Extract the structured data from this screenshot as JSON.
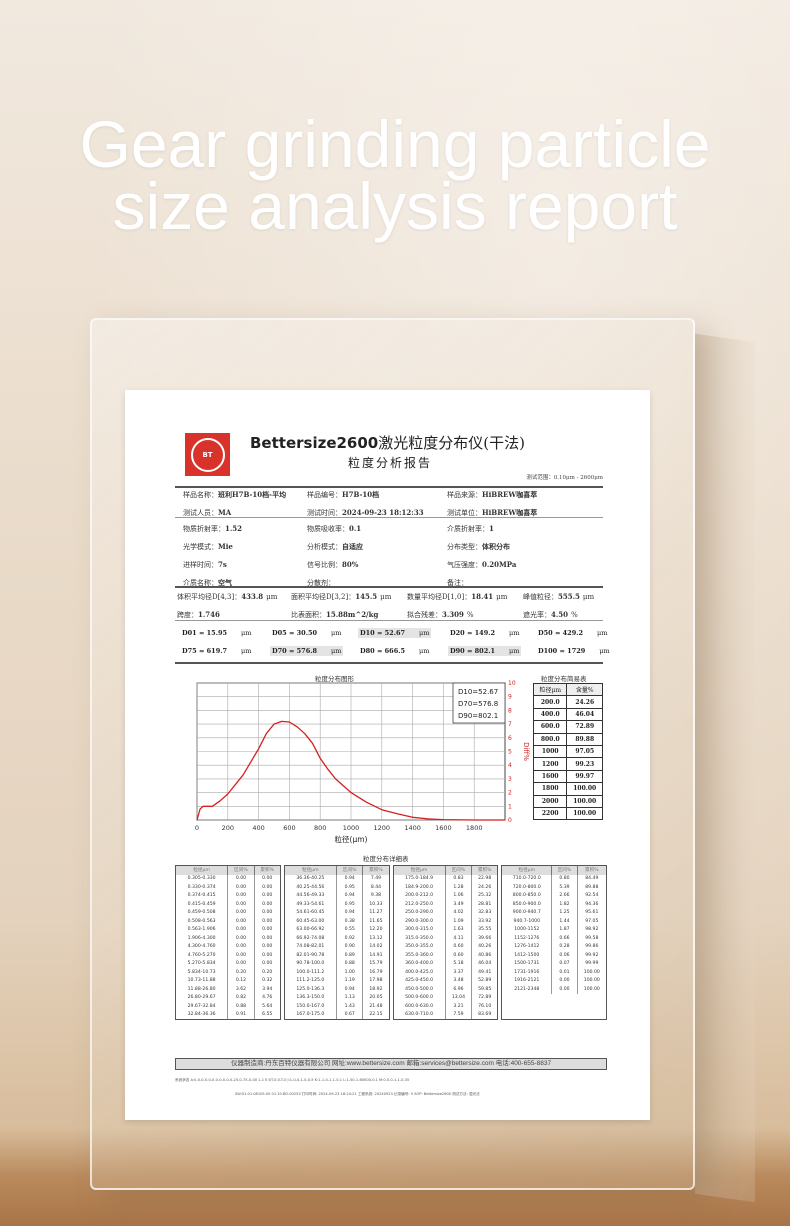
{
  "headline": {
    "line1": "Gear grinding particle",
    "line2": "size analysis report"
  },
  "report": {
    "logo_text": "BETTER 百特 BT",
    "logo_center": "BT",
    "title_brand": "Bettersize2600",
    "title_cn": "激光粒度分布仪(干法)",
    "subtitle": "粒度分析报告",
    "range": "测试范围：0.10μm - 2600μm",
    "info": [
      [
        {
          "k": "样品名称：",
          "v": "班利H7B-10档-平均"
        },
        {
          "k": "样品编号：",
          "v": "H7B-10档"
        },
        {
          "k": "样品来源：",
          "v": "HiBREW咖喜萃"
        }
      ],
      [
        {
          "k": "测试人员：",
          "v": "MA"
        },
        {
          "k": "测试时间：",
          "v": "2024-09-23  18:12:33"
        },
        {
          "k": "测试单位：",
          "v": "HiBREW咖喜萃"
        }
      ]
    ],
    "params": [
      [
        {
          "k": "物质折射率：",
          "v": "1.52"
        },
        {
          "k": "物质吸收率：",
          "v": "0.1"
        },
        {
          "k": "介质折射率：",
          "v": "1"
        }
      ],
      [
        {
          "k": "光学模式：",
          "v": "Mie"
        },
        {
          "k": "分析模式：",
          "v": "自适应"
        },
        {
          "k": "分布类型：",
          "v": "体积分布"
        }
      ],
      [
        {
          "k": "进样时间：",
          "v": "7s"
        },
        {
          "k": "信号比例：",
          "v": "80%"
        },
        {
          "k": "气压强度：",
          "v": "0.20MPa"
        }
      ],
      [
        {
          "k": "介质名称：",
          "v": "空气"
        },
        {
          "k": "分散剂：",
          "v": ""
        },
        {
          "k": "备注：",
          "v": ""
        }
      ]
    ],
    "stats": [
      [
        {
          "k": "体积平均径D[4,3]：",
          "v": "433.8",
          "u": "μm"
        },
        {
          "k": "面积平均径D[3,2]：",
          "v": "145.5",
          "u": "μm"
        },
        {
          "k": "数量平均径D[1,0]：",
          "v": "18.41",
          "u": "μm"
        },
        {
          "k": "峰值粒径：",
          "v": "555.5",
          "u": "μm"
        }
      ],
      [
        {
          "k": "跨度：",
          "v": "1.746",
          "u": ""
        },
        {
          "k": "比表面积：",
          "v": "15.88m^2/kg",
          "u": ""
        },
        {
          "k": "拟合残差：",
          "v": "3.309",
          "u": "%"
        },
        {
          "k": "遮光率：",
          "v": "4.50",
          "u": "%"
        }
      ]
    ],
    "dvalues": [
      [
        {
          "t": "D01 = 15.95",
          "u": "μm"
        },
        {
          "t": "D05 = 30.50",
          "u": "μm"
        },
        {
          "t": "D10 = 52.67",
          "u": "μm",
          "hl": true
        },
        {
          "t": "D20 = 149.2",
          "u": "μm"
        },
        {
          "t": "D50 = 429.2",
          "u": "μm"
        }
      ],
      [
        {
          "t": "D75 = 619.7",
          "u": "μm"
        },
        {
          "t": "D70 = 576.8",
          "u": "μm",
          "hl": true
        },
        {
          "t": "D80 = 666.5",
          "u": "μm"
        },
        {
          "t": "D90 = 802.1",
          "u": "μm",
          "hl": true
        },
        {
          "t": "D100 = 1729",
          "u": "μm"
        }
      ]
    ],
    "simple_table": {
      "title": "粒度分布简易表",
      "headers": [
        "粒径μm",
        "含量%"
      ],
      "rows": [
        [
          "200.0",
          "24.26"
        ],
        [
          "400.0",
          "46.04"
        ],
        [
          "600.0",
          "72.89"
        ],
        [
          "800.0",
          "89.88"
        ],
        [
          "1000",
          "97.05"
        ],
        [
          "1200",
          "99.23"
        ],
        [
          "1600",
          "99.97"
        ],
        [
          "1800",
          "100.00"
        ],
        [
          "2000",
          "100.00"
        ],
        [
          "2200",
          "100.00"
        ]
      ]
    },
    "detail_table": {
      "title": "粒度分布详细表",
      "headers": [
        "粒径μm",
        "区间%",
        "累积%"
      ],
      "groups": [
        [
          [
            "0.305-0.330",
            "0.00",
            "0.00"
          ],
          [
            "0.330-0.374",
            "0.00",
            "0.00"
          ],
          [
            "0.374-0.415",
            "0.00",
            "0.00"
          ],
          [
            "0.415-0.459",
            "0.00",
            "0.00"
          ],
          [
            "0.459-0.508",
            "0.00",
            "0.00"
          ],
          [
            "0.508-0.563",
            "0.00",
            "0.00"
          ],
          [
            "0.563-1.906",
            "0.00",
            "0.00"
          ],
          [
            "1.906-4.300",
            "0.00",
            "0.00"
          ],
          [
            "4.300-4.760",
            "0.00",
            "0.00"
          ],
          [
            "4.760-5.270",
            "0.00",
            "0.00"
          ],
          [
            "5.270-5.834",
            "0.00",
            "0.00"
          ],
          [
            "5.834-10.73",
            "0.20",
            "0.20"
          ],
          [
            "10.73-11.88",
            "0.12",
            "0.32"
          ],
          [
            "11.88-26.80",
            "3.62",
            "3.94"
          ],
          [
            "26.80-29.67",
            "0.82",
            "4.76"
          ],
          [
            "29.67-32.84",
            "0.88",
            "5.64"
          ],
          [
            "32.84-36.36",
            "0.91",
            "6.55"
          ]
        ],
        [
          [
            "36.36-40.25",
            "0.94",
            "7.49"
          ],
          [
            "40.25-44.56",
            "0.95",
            "8.44"
          ],
          [
            "44.56-49.33",
            "0.94",
            "9.38"
          ],
          [
            "49.33-54.61",
            "0.95",
            "10.33"
          ],
          [
            "54.61-60.45",
            "0.94",
            "11.27"
          ],
          [
            "60.45-63.00",
            "0.38",
            "11.65"
          ],
          [
            "63.00-66.92",
            "0.55",
            "12.20"
          ],
          [
            "66.92-74.08",
            "0.92",
            "13.12"
          ],
          [
            "74.08-82.01",
            "0.90",
            "14.02"
          ],
          [
            "82.01-90.78",
            "0.89",
            "14.91"
          ],
          [
            "90.78-100.0",
            "0.88",
            "15.79"
          ],
          [
            "100.0-111.2",
            "1.00",
            "16.79"
          ],
          [
            "111.2-125.0",
            "1.19",
            "17.98"
          ],
          [
            "125.0-136.3",
            "0.94",
            "18.92"
          ],
          [
            "136.3-150.0",
            "1.13",
            "20.05"
          ],
          [
            "150.0-167.0",
            "1.43",
            "21.48"
          ],
          [
            "167.0-175.0",
            "0.67",
            "22.15"
          ]
        ],
        [
          [
            "175.0-184.9",
            "0.83",
            "22.98"
          ],
          [
            "184.9-200.0",
            "1.28",
            "24.26"
          ],
          [
            "200.0-212.0",
            "1.06",
            "25.32"
          ],
          [
            "212.0-250.0",
            "3.49",
            "28.81"
          ],
          [
            "250.0-290.0",
            "4.02",
            "32.83"
          ],
          [
            "290.0-300.0",
            "1.09",
            "33.92"
          ],
          [
            "300.0-315.0",
            "1.63",
            "35.55"
          ],
          [
            "315.0-350.0",
            "4.11",
            "39.66"
          ],
          [
            "350.0-355.0",
            "0.60",
            "40.26"
          ],
          [
            "355.0-360.0",
            "0.60",
            "40.86"
          ],
          [
            "360.0-400.0",
            "5.18",
            "46.04"
          ],
          [
            "400.0-425.0",
            "3.37",
            "49.41"
          ],
          [
            "425.0-450.0",
            "3.48",
            "52.89"
          ],
          [
            "450.0-500.0",
            "6.96",
            "59.85"
          ],
          [
            "500.0-600.0",
            "13.04",
            "72.89"
          ],
          [
            "600.0-630.0",
            "3.21",
            "76.10"
          ],
          [
            "630.0-710.0",
            "7.59",
            "83.69"
          ]
        ],
        [
          [
            "710.0-720.0",
            "0.80",
            "84.49"
          ],
          [
            "720.0-800.0",
            "5.39",
            "89.88"
          ],
          [
            "800.0-850.0",
            "2.66",
            "92.54"
          ],
          [
            "850.0-900.0",
            "1.82",
            "94.36"
          ],
          [
            "900.0-940.7",
            "1.25",
            "95.61"
          ],
          [
            "940.7-1000",
            "1.44",
            "97.05"
          ],
          [
            "1000-1152",
            "1.87",
            "98.92"
          ],
          [
            "1152-1276",
            "0.66",
            "99.58"
          ],
          [
            "1276-1412",
            "0.28",
            "99.86"
          ],
          [
            "1412-1500",
            "0.06",
            "99.92"
          ],
          [
            "1500-1731",
            "0.07",
            "99.99"
          ],
          [
            "1731-1916",
            "0.01",
            "100.00"
          ],
          [
            "1916-2121",
            "0.00",
            "100.00"
          ],
          [
            "2121-2348",
            "0.00",
            "100.00"
          ]
        ]
      ]
    },
    "footer": "仪器制造商:丹东百特仪器有限公司  网址:www.bettersize.com  邮箱:services@bettersize.com  电话:400-655-8837",
    "status_line": "系统状态  A:0-0-0-0-0-0-0-0-0-0-0-25-0-75-0-00 1-1  E:0T-0-0-T-0  J:1-0-0-1-0-0-5  K:1-1-0-1-1-0-1  L:1-50-1-60000-0.1  M:0.0-0-1-1-0.35",
    "meta_line": "SW:01.01.08105.00   01.10.BO.00253   打印时间: 2024-09-23 18:24:21   工程系统: 20240923   记录编号: 5   SOP: Bettersize2600   测试方法: 湿光法"
  },
  "chart_data": {
    "type": "line",
    "title": "粒度分布图形",
    "xlabel": "粒径(μm)",
    "ylabel": "Diff%",
    "xlim": [
      0,
      2000
    ],
    "ylim": [
      0,
      10
    ],
    "xticks": [
      0,
      200,
      400,
      600,
      800,
      1000,
      1200,
      1400,
      1600,
      1800
    ],
    "yticks": [
      0,
      1,
      2,
      3,
      4,
      5,
      6,
      7,
      8,
      9,
      10
    ],
    "grid": true,
    "legend_box": [
      "D10=52.67",
      "D70=576.8",
      "D90=802.1"
    ],
    "legend_placement": "top-right",
    "color": "#d42020",
    "x": [
      0,
      20,
      40,
      80,
      100,
      150,
      200,
      300,
      400,
      450,
      500,
      550,
      600,
      650,
      700,
      750,
      800,
      850,
      900,
      1000,
      1100,
      1200,
      1300,
      1400,
      1500,
      1600,
      1800,
      2000
    ],
    "y": [
      0,
      0.8,
      1.0,
      1.0,
      1.0,
      1.4,
      1.9,
      3.3,
      5.2,
      6.3,
      7.0,
      7.2,
      7.15,
      6.8,
      6.3,
      5.6,
      4.5,
      3.7,
      3.0,
      2.0,
      1.3,
      0.75,
      0.45,
      0.2,
      0.08,
      0.03,
      0,
      0
    ]
  }
}
